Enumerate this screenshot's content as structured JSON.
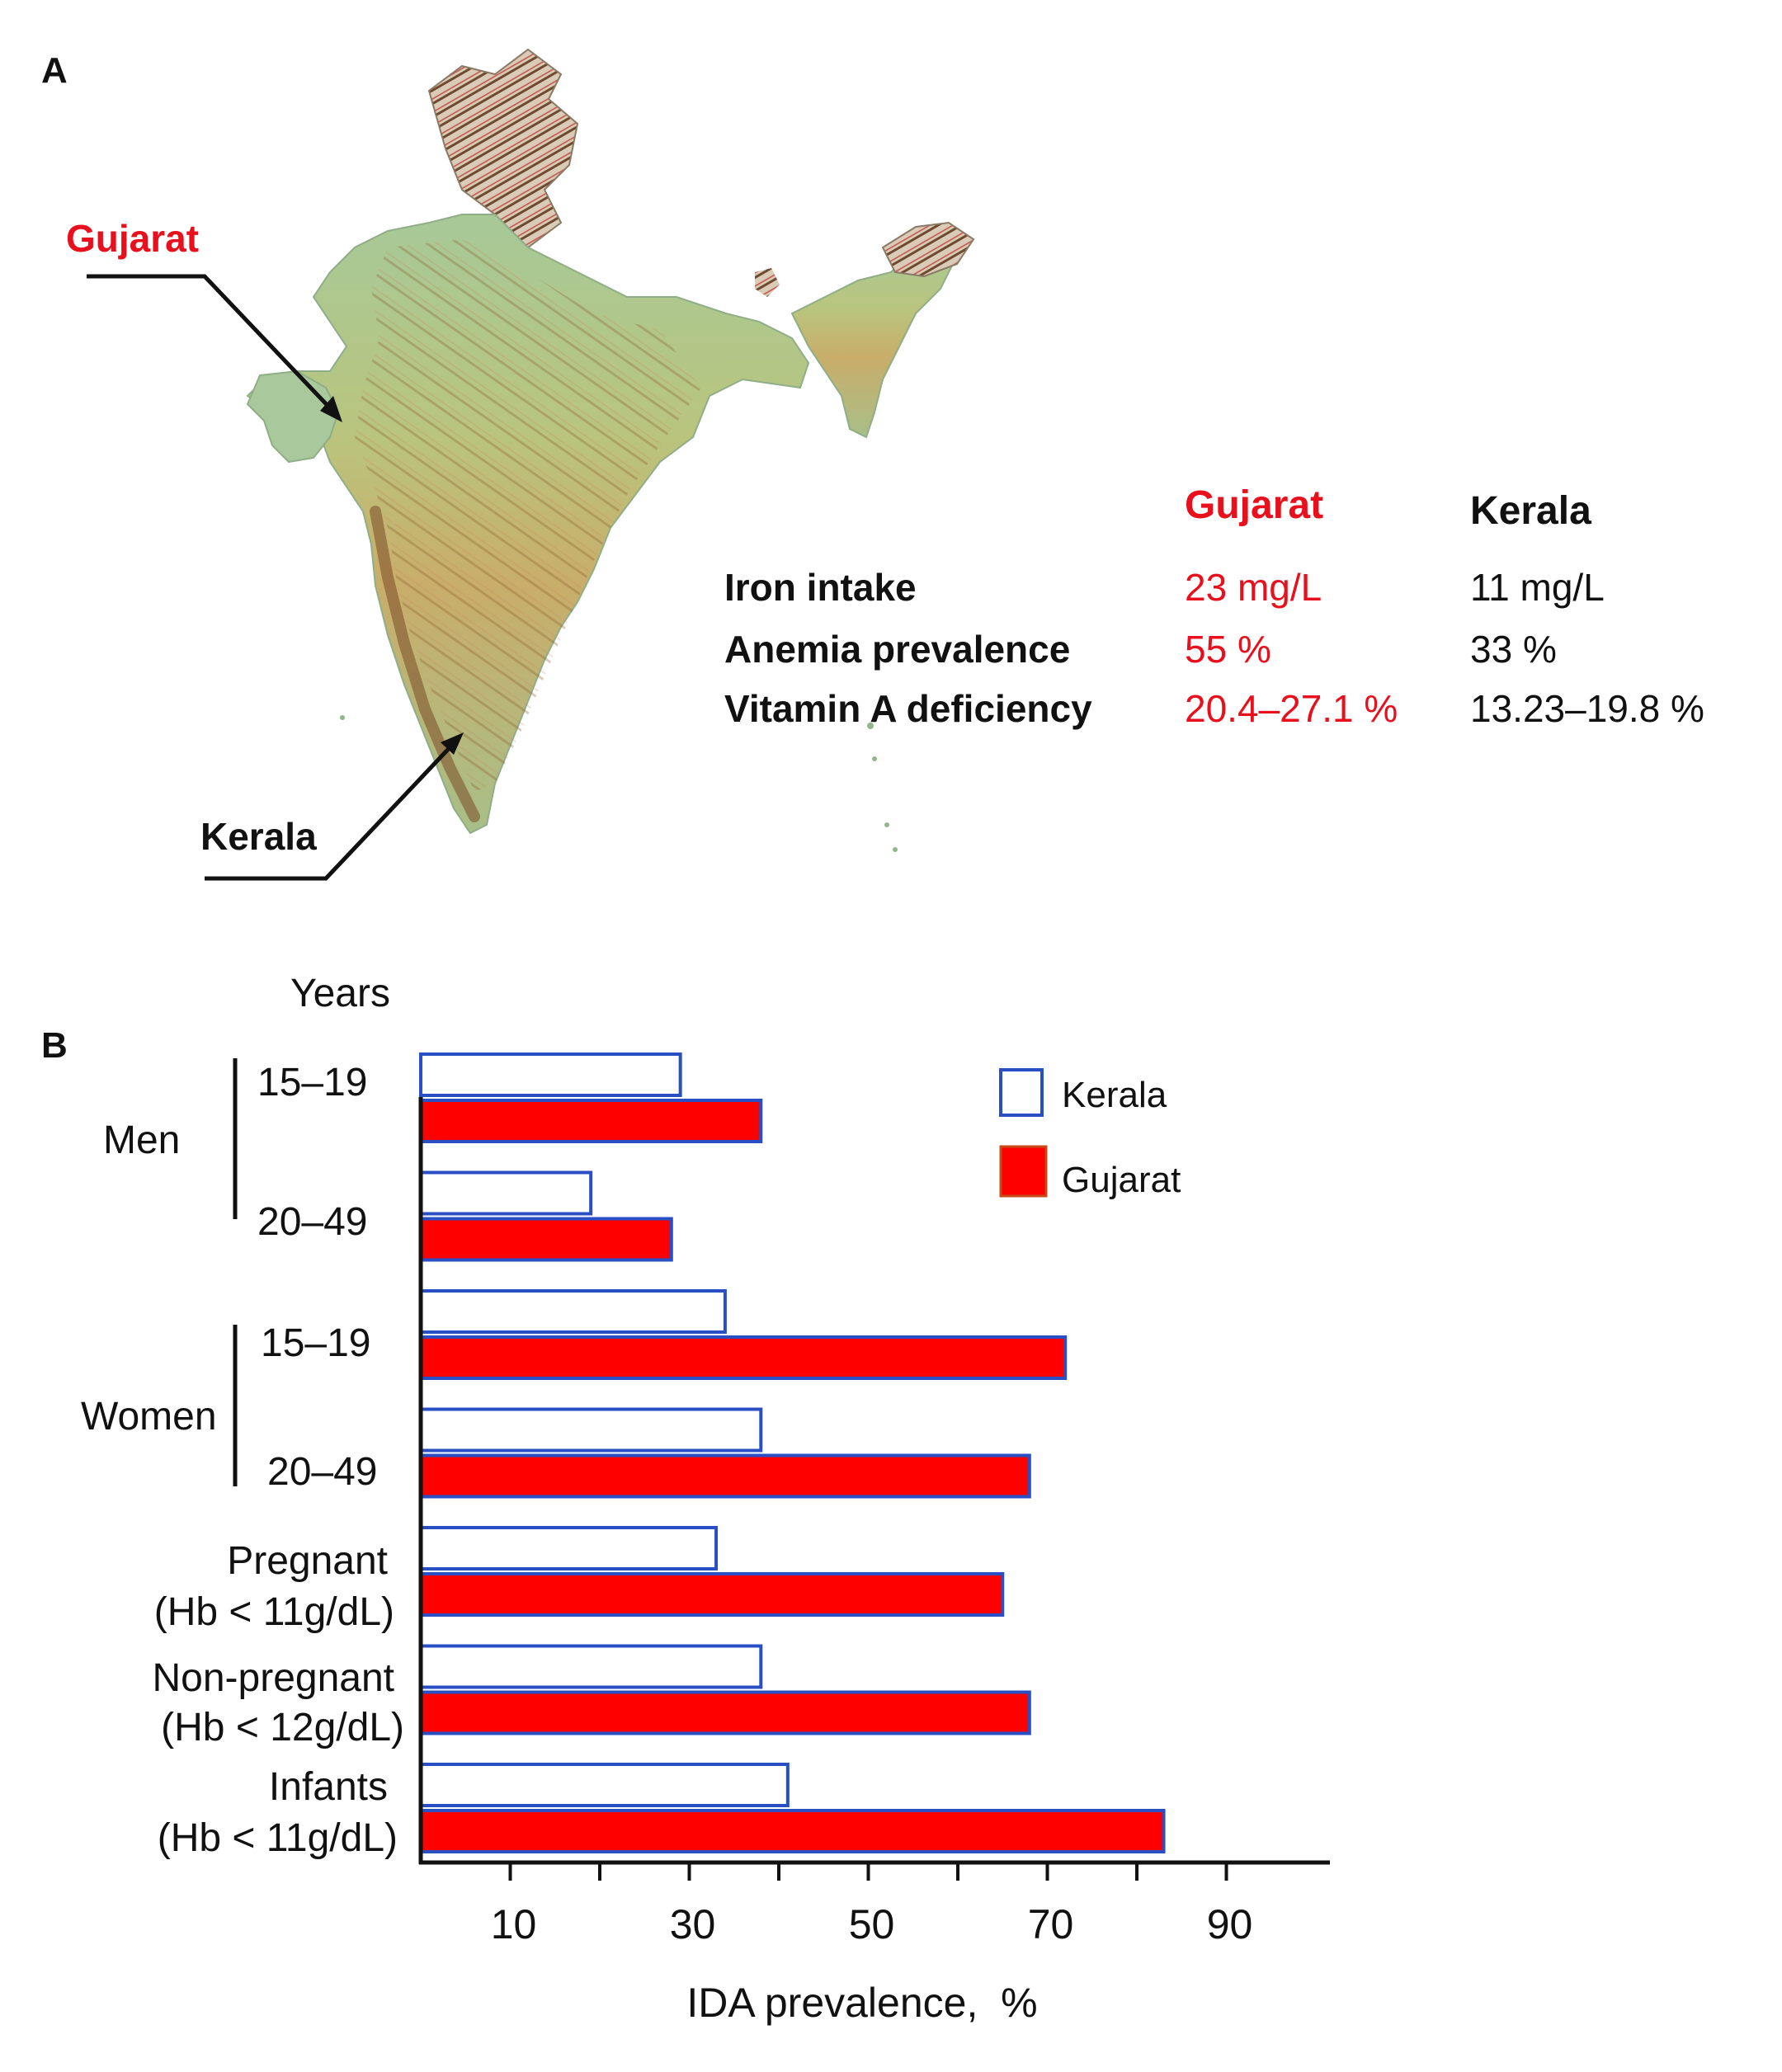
{
  "panel_a": {
    "panel_letter": "A",
    "gujarat_label": "Gujarat",
    "kerala_label": "Kerala",
    "table": {
      "columns": [
        "Gujarat",
        "Kerala"
      ],
      "rows": [
        {
          "label": "Iron intake",
          "gujarat": "23 mg/L",
          "kerala": "11 mg/L"
        },
        {
          "label": "Anemia prevalence",
          "gujarat": "55 %",
          "kerala": "33 %"
        },
        {
          "label": "Vitamin A deficiency",
          "gujarat": "20.4–27.1 %",
          "kerala": "13.23–19.8 %"
        }
      ]
    },
    "colors": {
      "gujarat": "#e8101c",
      "kerala": "#111111"
    }
  },
  "panel_b": {
    "panel_letter": "B",
    "years_label": "Years",
    "groups": [
      {
        "label": "Men",
        "sublabels": [
          "15–19",
          "20–49"
        ]
      },
      {
        "label": "Women",
        "sublabels": [
          "15–19",
          "20–49"
        ]
      }
    ],
    "row_labels": [
      [
        "Pregnant",
        "(Hb < 11g/dL)"
      ],
      [
        "Non-pregnant",
        "(Hb < 12g/dL)"
      ],
      [
        "Infants",
        "(Hb < 11g/dL)"
      ]
    ]
  },
  "chart_data": {
    "type": "bar",
    "orientation": "horizontal",
    "categories": [
      "Men 15–19",
      "Men 20–49",
      "Women 15–19",
      "Women 20–49",
      "Pregnant (Hb < 11g/dL)",
      "Non-pregnant (Hb < 12g/dL)",
      "Infants (Hb < 11g/dL)"
    ],
    "series": [
      {
        "name": "Kerala",
        "values": [
          29,
          19,
          34,
          38,
          33,
          38,
          41
        ],
        "fill": "#ffffff",
        "stroke": "#2a4fc4"
      },
      {
        "name": "Gujarat",
        "values": [
          38,
          28,
          72,
          68,
          65,
          68,
          83
        ],
        "fill": "#ff0000",
        "stroke": "#2a4fc4"
      }
    ],
    "xlabel": "IDA prevalence,  %",
    "ylabel": "",
    "xticks": [
      10,
      30,
      50,
      70,
      90
    ],
    "xlim": [
      0,
      100
    ],
    "legend": {
      "position": "top-right",
      "entries": [
        "Kerala",
        "Gujarat"
      ]
    },
    "grid": false
  }
}
